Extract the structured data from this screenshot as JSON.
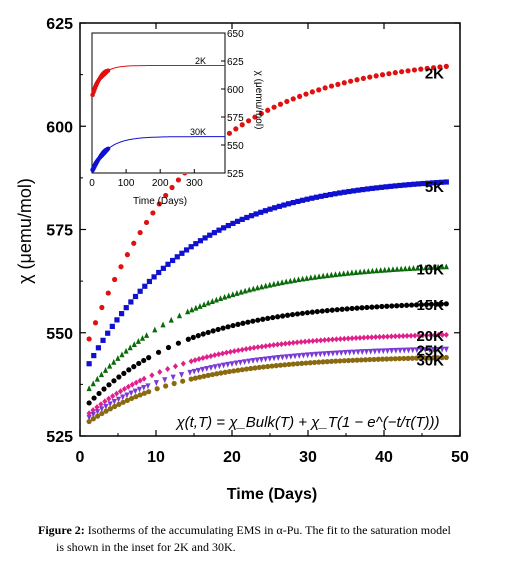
{
  "chart_data": [
    {
      "type": "scatter",
      "title": "",
      "xlabel": "Time (Days)",
      "ylabel": "χ (μemu/mol)",
      "xlim": [
        0,
        50
      ],
      "ylim": [
        525,
        625
      ],
      "xticks": [
        "0",
        "10",
        "20",
        "30",
        "40",
        "50"
      ],
      "yticks": [
        "525",
        "550",
        "575",
        "600",
        "625"
      ],
      "grid": false,
      "annotation": "χ(t,T) = χ_Bulk(T) + χ_T(1 − e^(−t/τ(T)))",
      "series": [
        {
          "name": "2K",
          "color": "#e01010",
          "marker": "circle",
          "x_start": 1.2,
          "x_end": 48.2,
          "y_start": 548.5,
          "y_end": 614.5,
          "curve": 0.5,
          "points": 57
        },
        {
          "name": "5K",
          "color": "#1010d0",
          "marker": "square",
          "x_start": 1.2,
          "x_end": 48.2,
          "y_start": 542.5,
          "y_end": 586.5,
          "curve": 0.55,
          "points": 78
        },
        {
          "name": "10K",
          "color": "#0a6a0a",
          "marker": "triangle",
          "x_start": 1.2,
          "x_end": 48.2,
          "y_start": 536.5,
          "y_end": 566.0,
          "curve": 0.55,
          "points": 88
        },
        {
          "name": "15K",
          "color": "#000000",
          "marker": "circle",
          "x_start": 1.2,
          "x_end": 48.2,
          "y_start": 533.0,
          "y_end": 557.0,
          "curve": 0.6,
          "points": 73
        },
        {
          "name": "20K",
          "color": "#e0208a",
          "marker": "diamond",
          "x_start": 1.2,
          "x_end": 48.2,
          "y_start": 530.5,
          "y_end": 549.5,
          "curve": 0.65,
          "points": 92
        },
        {
          "name": "25K",
          "color": "#7a3ad6",
          "marker": "tri-down",
          "x_start": 1.2,
          "x_end": 48.2,
          "y_start": 529.5,
          "y_end": 546.0,
          "curve": 0.65,
          "points": 86
        },
        {
          "name": "30K",
          "color": "#8a6a10",
          "marker": "circle",
          "x_start": 1.2,
          "x_end": 48.2,
          "y_start": 528.5,
          "y_end": 544.0,
          "curve": 0.65,
          "points": 85
        }
      ],
      "gaps": [
        [
          8.6,
          14.6
        ]
      ]
    },
    {
      "type": "scatter",
      "title": "",
      "xlabel": "Time (Days)",
      "ylabel": "χ (μemu/mol)",
      "xlim": [
        0,
        390
      ],
      "ylim": [
        525,
        650
      ],
      "xticks": [
        "0",
        "100",
        "200",
        "300"
      ],
      "yticks": [
        "525",
        "550",
        "575",
        "600",
        "625",
        "650"
      ],
      "series": [
        {
          "name": "2K",
          "color": "#e01010",
          "chi_bulk": 593.0,
          "chi_T": 28.0,
          "tau": 26.0
        },
        {
          "name": "30K",
          "color": "#1010d0",
          "chi_bulk": 526.5,
          "chi_T": 31.0,
          "tau": 45.0
        }
      ]
    }
  ],
  "caption": {
    "lead": "Figure 2:",
    "line1": " Isotherms of the accumulating EMS in α-Pu.  The fit to the saturation model",
    "line2": "is shown in the inset for 2K and 30K."
  }
}
